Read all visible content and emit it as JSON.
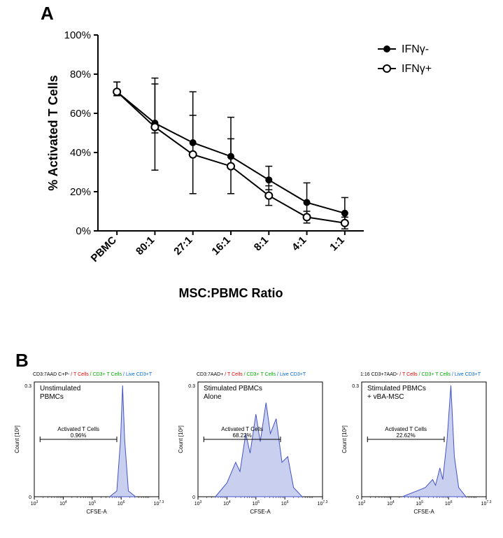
{
  "panels": {
    "A": "A",
    "B": "B"
  },
  "chartA": {
    "type": "line-errorbar",
    "y_label": "% Activated T Cells",
    "x_label": "MSC:PBMC Ratio",
    "title_fontsize": 20,
    "label_fontsize": 18,
    "tick_fontsize": 15,
    "y_min": 0,
    "y_max": 100,
    "y_step": 20,
    "y_tick_suffix": "%",
    "categories": [
      "PBMC",
      "80:1",
      "27:1",
      "16:1",
      "8:1",
      "4:1",
      "1:1"
    ],
    "series": [
      {
        "name": "IFNγ-",
        "marker": "filled-circle",
        "color": "#000000",
        "line_width": 2,
        "values": [
          71,
          55,
          45,
          38,
          26,
          14.5,
          9
        ],
        "err_low": [
          2,
          5,
          6,
          5,
          5,
          7,
          4
        ],
        "err_high": [
          5,
          23,
          26,
          20,
          7,
          10,
          8
        ]
      },
      {
        "name": "IFNγ+",
        "marker": "open-circle",
        "color": "#000000",
        "line_width": 2,
        "values": [
          71,
          53,
          39,
          33,
          18,
          7,
          4
        ],
        "err_low": [
          2,
          22,
          20,
          14,
          5,
          3,
          3
        ],
        "err_high": [
          5,
          22,
          20,
          14,
          5,
          3,
          3
        ]
      }
    ],
    "legend": {
      "items": [
        "IFNγ-",
        "IFNγ+"
      ],
      "fontsize": 16
    },
    "axis_color": "#000000",
    "background_color": "#ffffff"
  },
  "panelB": {
    "type": "flow-histograms",
    "x_label": "CFSE-A",
    "y_label": "Count [10^2]",
    "hist_fill": "#c9d0ef",
    "hist_stroke": "#4452c4",
    "axis_color": "#000000",
    "gate_label": "Activated T Cells",
    "y_max_label": "0.3",
    "x_ticks_log": [
      "10^3",
      "10^4",
      "10^5",
      "10^6",
      "10^7.3"
    ],
    "plots": [
      {
        "condition_lines": [
          "Unstimulated",
          "PBMCs"
        ],
        "gate_pct": "0.96%",
        "header_prefix": "CD3:7AAD C+P-",
        "peak_shape": "single-narrow-right"
      },
      {
        "condition_lines": [
          "Stimulated PBMCs",
          "Alone"
        ],
        "gate_pct": "68.22%",
        "header_prefix": "CD3:7AAD+",
        "peak_shape": "multi-peak-broad"
      },
      {
        "condition_lines": [
          "Stimulated PBMCs",
          "+ vBA-MSC"
        ],
        "gate_pct": "22.62%",
        "header_prefix": "1:16 CD3+7AAD-",
        "peak_shape": "narrow-right-with-shoulders"
      }
    ],
    "header_rest": [
      {
        "text": " / T Cells",
        "cls": "hdr-b"
      },
      {
        "text": " / CD3+ T Cells",
        "cls": "hdr-c"
      },
      {
        "text": " / Live CD3+T",
        "cls": "hdr-d"
      }
    ]
  }
}
